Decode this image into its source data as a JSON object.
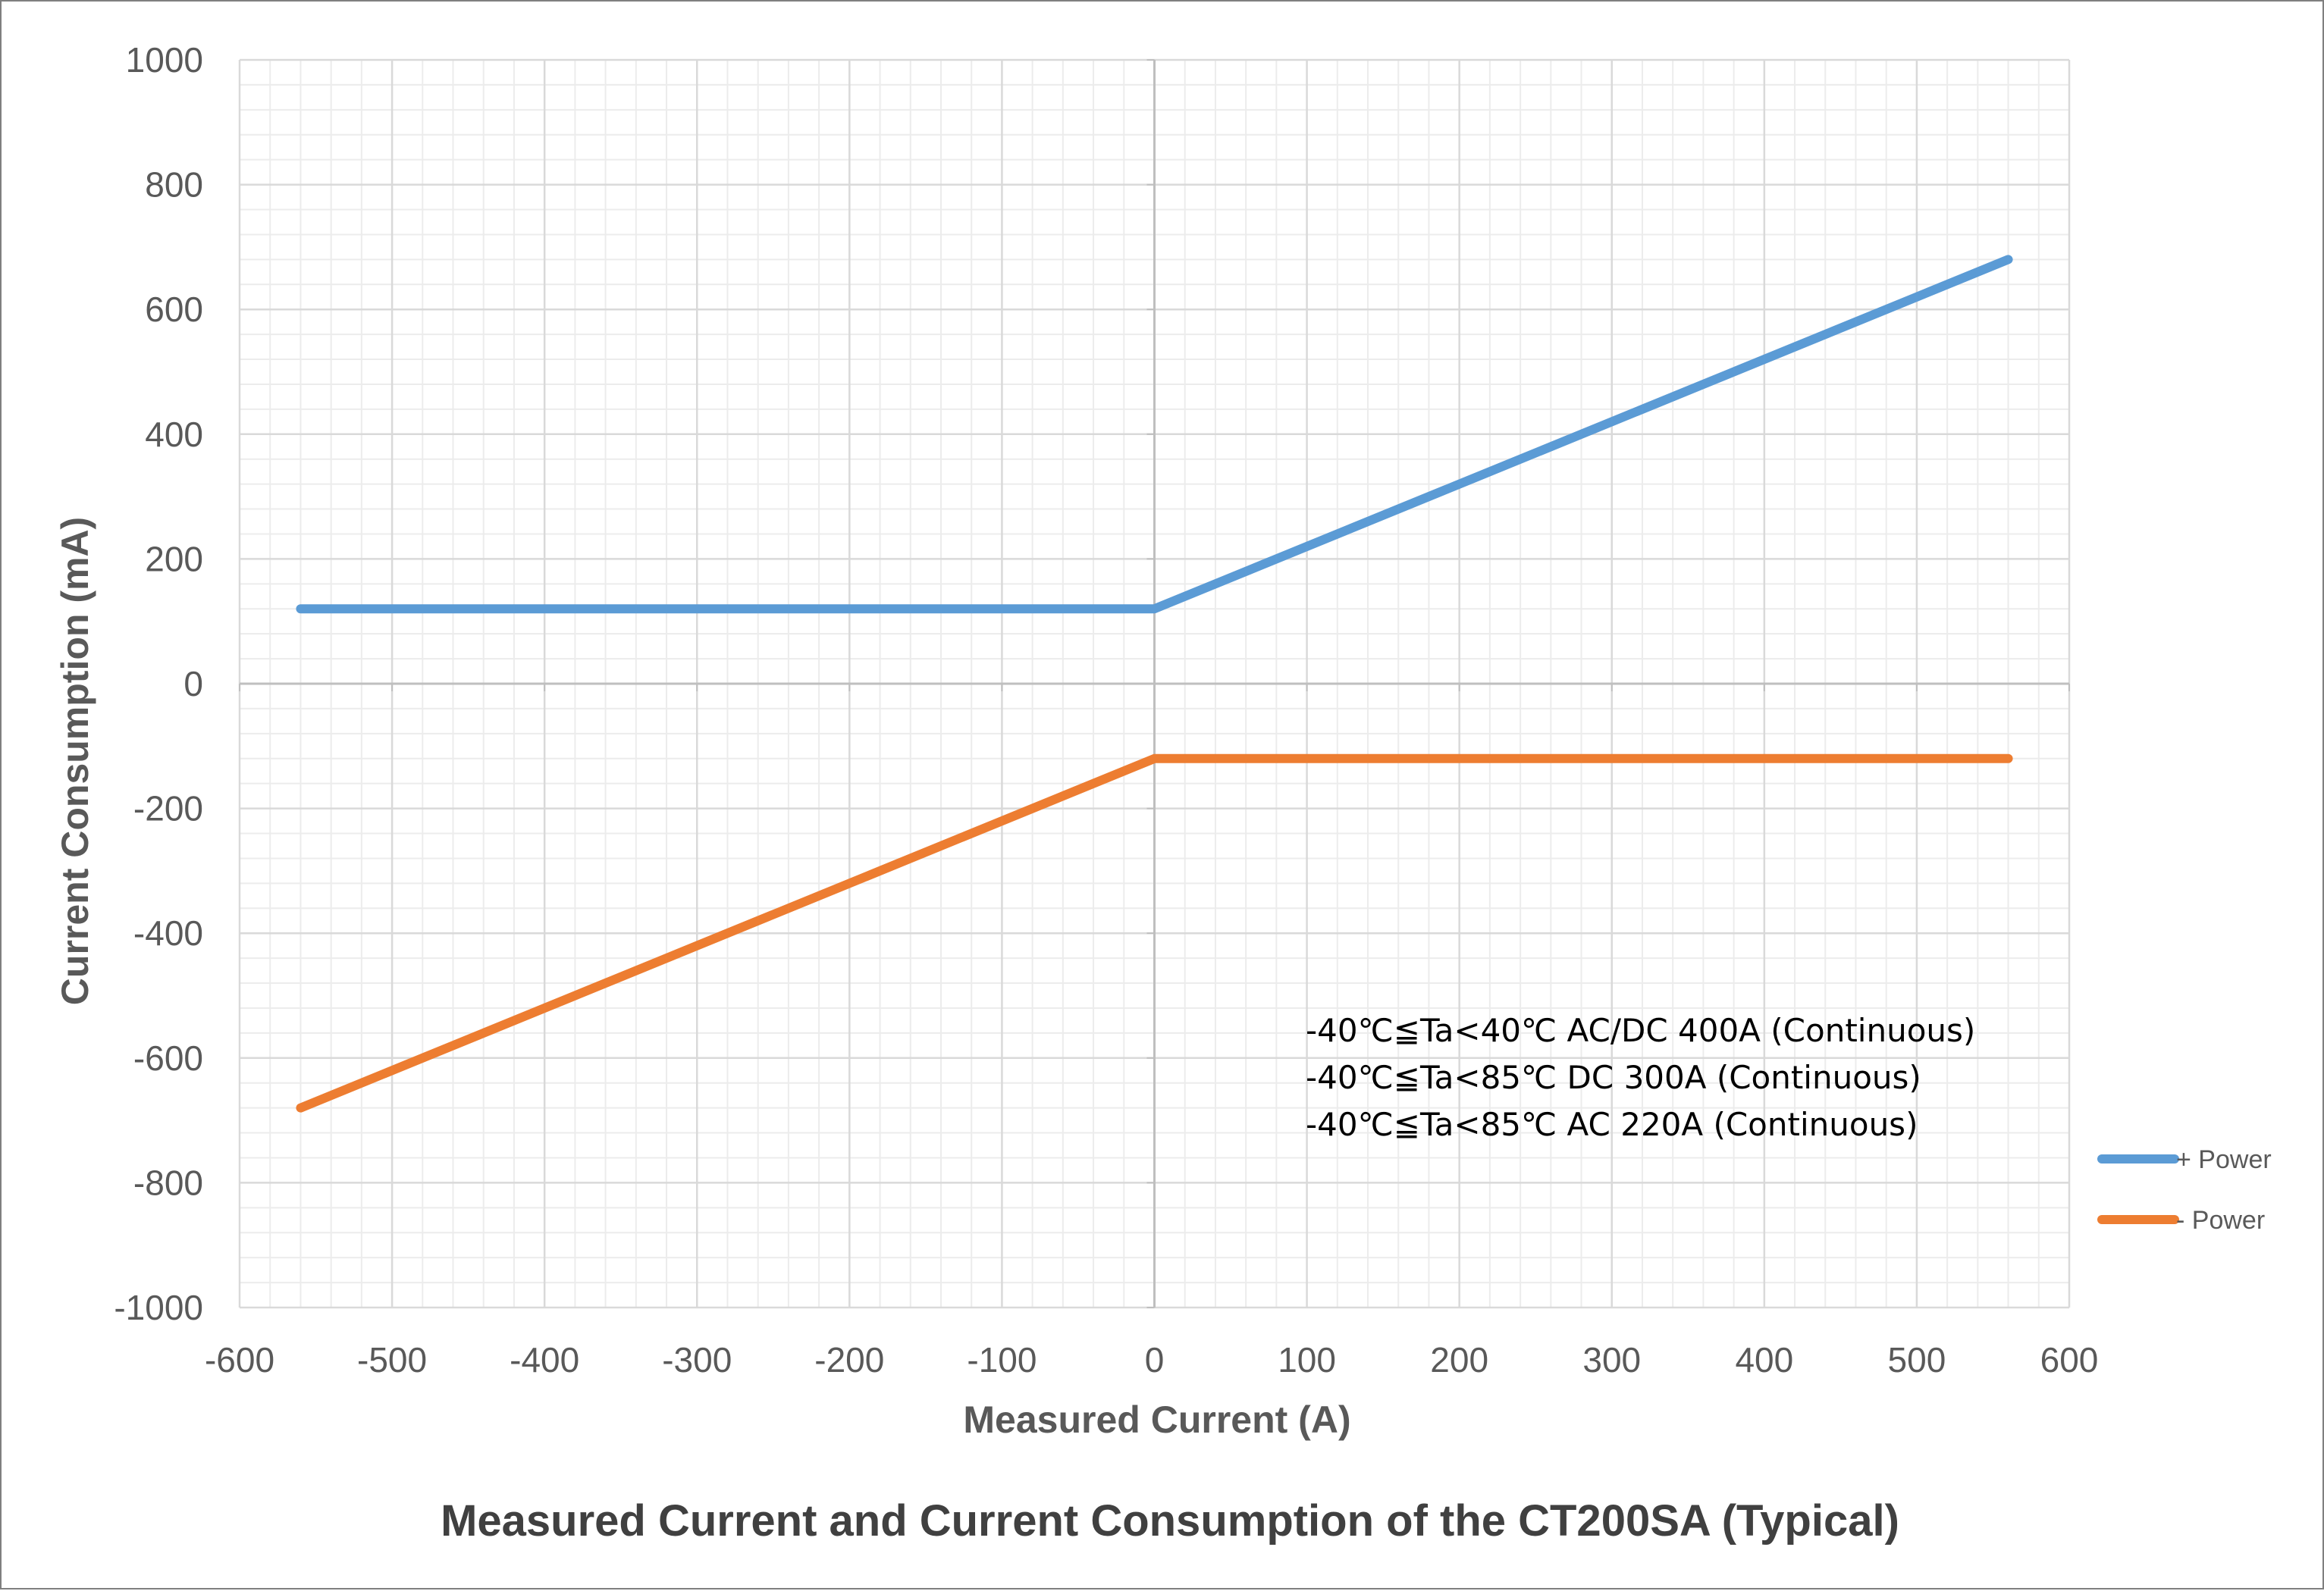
{
  "chart_data": {
    "type": "line",
    "title": "Measured Current and Current Consumption of the CT200SA (Typical)",
    "xlabel": "Measured Current (A)",
    "ylabel": "Current Consumption (mA)",
    "xlim": [
      -600,
      600
    ],
    "ylim": [
      -1000,
      1000
    ],
    "xticks": [
      -600,
      -500,
      -400,
      -300,
      -200,
      -100,
      0,
      100,
      200,
      300,
      400,
      500,
      600
    ],
    "yticks": [
      1000,
      800,
      600,
      400,
      200,
      0,
      -200,
      -400,
      -600,
      -800,
      -1000
    ],
    "grid": true,
    "minor_grid": true,
    "legend_position": "right",
    "annotations": [
      "-40℃≦Ta<40℃ AC/DC 400A (Continuous)",
      "-40℃≦Ta<85℃ DC 300A (Continuous)",
      "-40℃≦Ta<85℃ AC 220A (Continuous)"
    ],
    "series": [
      {
        "name": "+ Power",
        "color": "#5b9bd5",
        "x": [
          -560,
          0,
          560
        ],
        "y": [
          120,
          120,
          680
        ]
      },
      {
        "name": "- Power",
        "color": "#ed7d31",
        "x": [
          -560,
          0,
          560
        ],
        "y": [
          -680,
          -120,
          -120
        ]
      }
    ]
  }
}
